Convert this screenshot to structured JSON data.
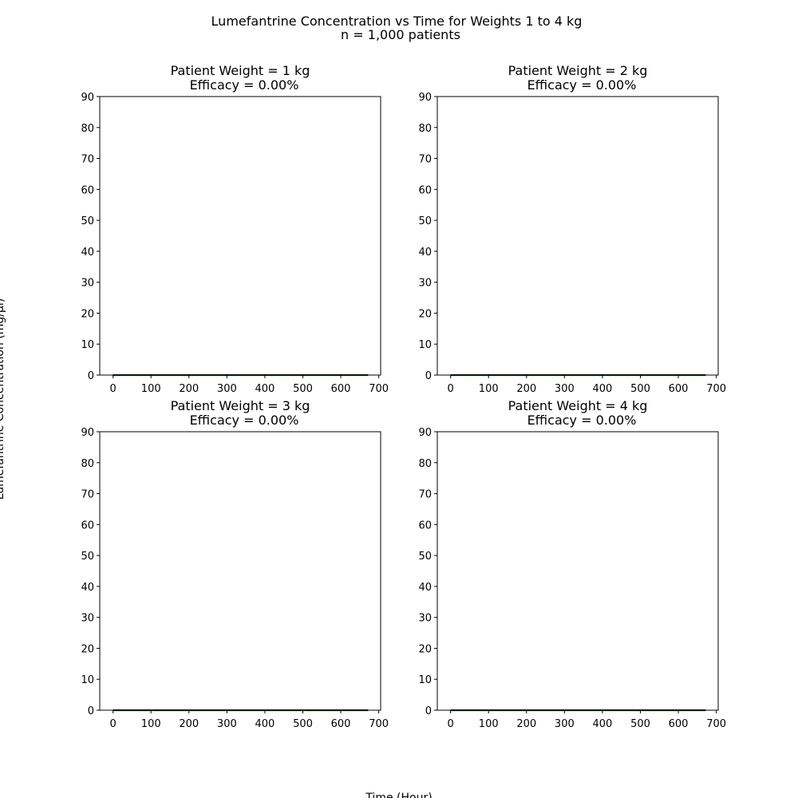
{
  "figure": {
    "title_line1": "Lumefantrine Concentration vs Time for Weights 1 to 4 kg",
    "title_line2": "n = 1,000 patients",
    "xlabel": "Time (Hour)",
    "ylabel": "Lumefantrine Concentration (mg/µl)"
  },
  "colors": {
    "line": "#0b3d1a",
    "axes": "#000000",
    "background": "#ffffff"
  },
  "chart_data": [
    {
      "type": "line",
      "title_line1": "Patient Weight = 1 kg",
      "title_line2": "Efficacy = 0.00%",
      "xlim": [
        -35,
        705
      ],
      "ylim": [
        0,
        90
      ],
      "xticks": [
        0,
        100,
        200,
        300,
        400,
        500,
        600,
        700
      ],
      "yticks": [
        0,
        10,
        20,
        30,
        40,
        50,
        60,
        70,
        80,
        90
      ],
      "grid": false,
      "series": [
        {
          "x": [
            0,
            672
          ],
          "values": [
            0,
            0
          ]
        }
      ]
    },
    {
      "type": "line",
      "title_line1": "Patient Weight = 2 kg",
      "title_line2": "Efficacy = 0.00%",
      "xlim": [
        -35,
        705
      ],
      "ylim": [
        0,
        90
      ],
      "xticks": [
        0,
        100,
        200,
        300,
        400,
        500,
        600,
        700
      ],
      "yticks": [
        0,
        10,
        20,
        30,
        40,
        50,
        60,
        70,
        80,
        90
      ],
      "grid": false,
      "series": [
        {
          "x": [
            0,
            672
          ],
          "values": [
            0,
            0
          ]
        }
      ]
    },
    {
      "type": "line",
      "title_line1": "Patient Weight = 3 kg",
      "title_line2": "Efficacy = 0.00%",
      "xlim": [
        -35,
        705
      ],
      "ylim": [
        0,
        90
      ],
      "xticks": [
        0,
        100,
        200,
        300,
        400,
        500,
        600,
        700
      ],
      "yticks": [
        0,
        10,
        20,
        30,
        40,
        50,
        60,
        70,
        80,
        90
      ],
      "grid": false,
      "series": [
        {
          "x": [
            0,
            672
          ],
          "values": [
            0,
            0
          ]
        }
      ]
    },
    {
      "type": "line",
      "title_line1": "Patient Weight = 4 kg",
      "title_line2": "Efficacy = 0.00%",
      "xlim": [
        -35,
        705
      ],
      "ylim": [
        0,
        90
      ],
      "xticks": [
        0,
        100,
        200,
        300,
        400,
        500,
        600,
        700
      ],
      "yticks": [
        0,
        10,
        20,
        30,
        40,
        50,
        60,
        70,
        80,
        90
      ],
      "grid": false,
      "series": [
        {
          "x": [
            0,
            672
          ],
          "values": [
            0,
            0
          ]
        }
      ]
    }
  ]
}
